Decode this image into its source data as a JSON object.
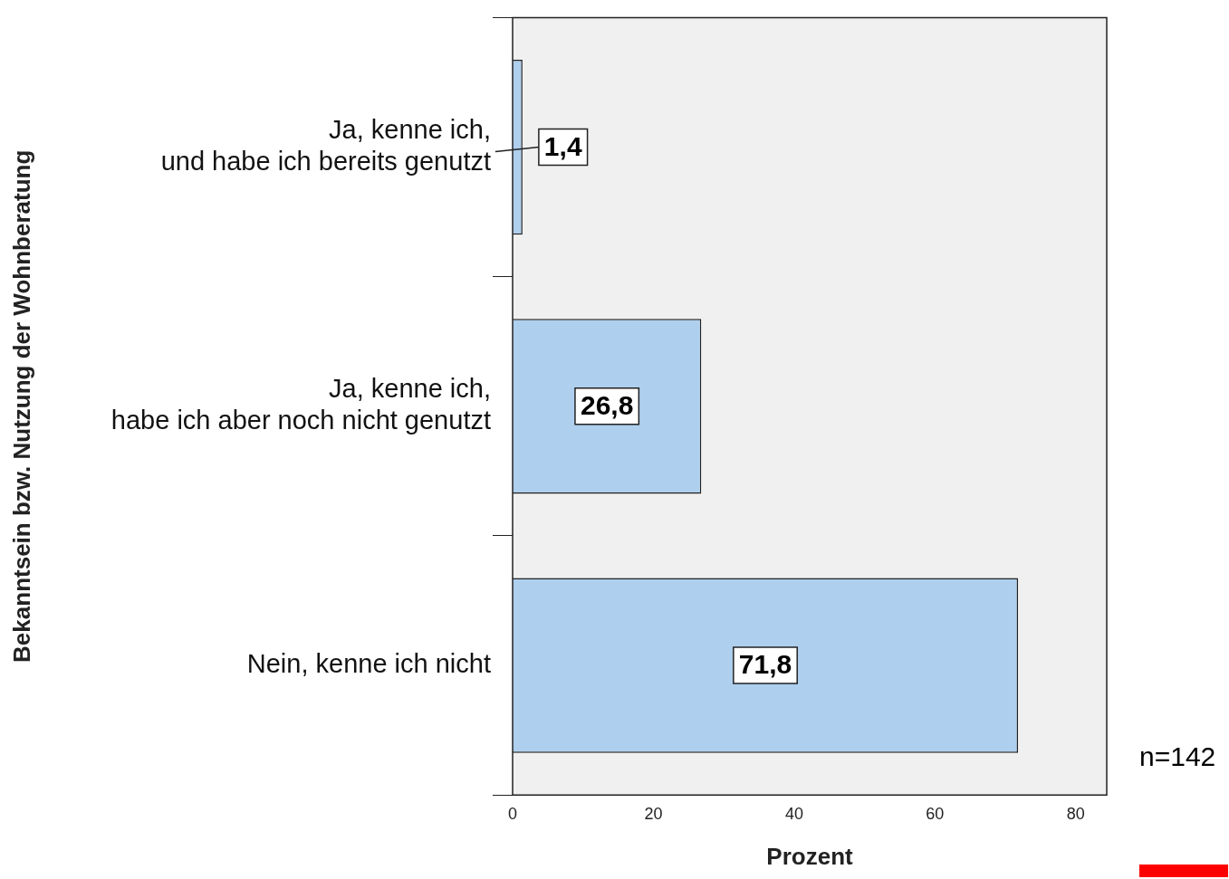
{
  "chart_data": {
    "type": "bar",
    "orientation": "horizontal",
    "ylabel": "Bekanntsein bzw. Nutzung der Wohnberatung",
    "xlabel": "Prozent",
    "categories": [
      "Ja, kenne ich,\nund habe ich bereits genutzt",
      "Ja, kenne ich,\nhabe ich aber noch nicht genutzt",
      "Nein, kenne ich nicht"
    ],
    "values": [
      1.4,
      26.8,
      71.8
    ],
    "value_labels": [
      "1,4",
      "26,8",
      "71,8"
    ],
    "color": "#aecfee",
    "xlim": [
      0,
      84.4
    ],
    "xticks": [
      0,
      20,
      40,
      60,
      80
    ],
    "grid": false,
    "legend": false,
    "annotations": [
      "n=142"
    ]
  }
}
